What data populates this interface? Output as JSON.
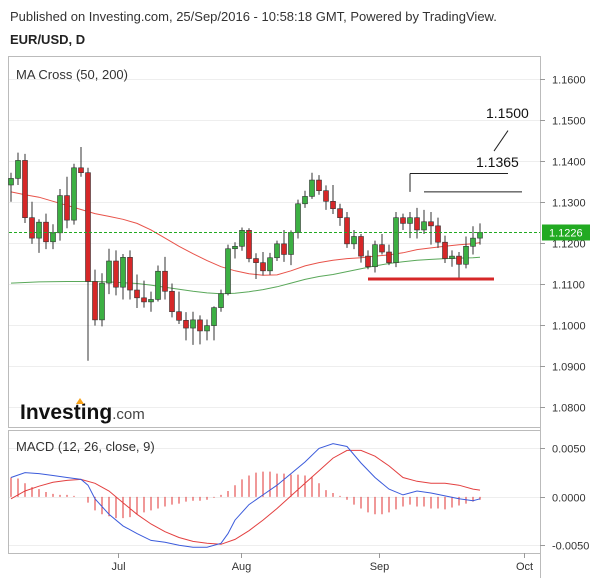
{
  "header": {
    "published": "Published on Investing.com, 25/Sep/2016 - 10:58:18 GMT, Powered by TradingView.",
    "symbol": "EUR/USD, D"
  },
  "watermark": {
    "brand": "Investing",
    "suffix": ".com"
  },
  "colors": {
    "up": "#3cb043",
    "down": "#d62728",
    "ma50": "#e8534a",
    "ma200": "#5aa85a",
    "macd": "#3b5bdb",
    "signal": "#e34040",
    "hist": "#e03030",
    "last": "#22aa22"
  },
  "chart_data": [
    {
      "type": "candlestick",
      "title": "MA Cross (50, 200)",
      "ylim": [
        1.075,
        1.1655
      ],
      "y_ticks": [
        "1.1600",
        "1.1500",
        "1.1400",
        "1.1300",
        "1.1200",
        "1.1100",
        "1.1000",
        "1.0900",
        "1.0800"
      ],
      "last_price": "1.1226",
      "x_ticks": [
        "Jul",
        "Aug",
        "Sep",
        "Oct"
      ],
      "annotations": [
        {
          "text": "1.1500",
          "kind": "label"
        },
        {
          "text": "1.1365",
          "kind": "label"
        },
        {
          "kind": "hline",
          "value": 1.1325,
          "from": 59,
          "to": 73
        },
        {
          "kind": "hline",
          "value": 1.137,
          "from": 57,
          "to": 71
        },
        {
          "kind": "support",
          "value": 1.1112,
          "from": 51,
          "to": 69
        }
      ],
      "candles": [
        [
          1.1342,
          1.1372,
          1.1301,
          1.1358
        ],
        [
          1.1358,
          1.1421,
          1.1342,
          1.1402
        ],
        [
          1.1402,
          1.1418,
          1.1249,
          1.1262
        ],
        [
          1.1262,
          1.1301,
          1.1198,
          1.1212
        ],
        [
          1.1212,
          1.1258,
          1.1176,
          1.1251
        ],
        [
          1.1251,
          1.1272,
          1.1185,
          1.1203
        ],
        [
          1.1203,
          1.1246,
          1.1185,
          1.1225
        ],
        [
          1.1225,
          1.1332,
          1.1206,
          1.1316
        ],
        [
          1.1316,
          1.1362,
          1.1236,
          1.1256
        ],
        [
          1.1256,
          1.1394,
          1.1245,
          1.1384
        ],
        [
          1.1384,
          1.1435,
          1.1362,
          1.1372
        ],
        [
          1.1372,
          1.1384,
          1.0912,
          1.1106
        ],
        [
          1.1106,
          1.1135,
          1.0998,
          1.1012
        ],
        [
          1.1012,
          1.1126,
          1.0996,
          1.1102
        ],
        [
          1.1102,
          1.1186,
          1.1075,
          1.1156
        ],
        [
          1.1156,
          1.1182,
          1.1072,
          1.1092
        ],
        [
          1.1092,
          1.1173,
          1.1062,
          1.1165
        ],
        [
          1.1165,
          1.1182,
          1.1062,
          1.1085
        ],
        [
          1.1085,
          1.1123,
          1.1041,
          1.1066
        ],
        [
          1.1066,
          1.1108,
          1.1042,
          1.1056
        ],
        [
          1.1056,
          1.1081,
          1.1032,
          1.1062
        ],
        [
          1.1062,
          1.1145,
          1.1057,
          1.1131
        ],
        [
          1.1131,
          1.1166,
          1.1062,
          1.1082
        ],
        [
          1.1082,
          1.1101,
          1.1018,
          1.1032
        ],
        [
          1.1032,
          1.1081,
          1.1002,
          1.1011
        ],
        [
          1.1011,
          1.1031,
          1.0962,
          1.0992
        ],
        [
          1.0992,
          1.1032,
          1.0951,
          1.1012
        ],
        [
          1.1012,
          1.1023,
          1.0952,
          1.0985
        ],
        [
          1.0985,
          1.1013,
          1.0962,
          1.0998
        ],
        [
          1.0998,
          1.1045,
          1.0962,
          1.1042
        ],
        [
          1.1042,
          1.1086,
          1.1032,
          1.1076
        ],
        [
          1.1076,
          1.1196,
          1.1072,
          1.1186
        ],
        [
          1.1186,
          1.1202,
          1.1162,
          1.1192
        ],
        [
          1.1192,
          1.1238,
          1.1181,
          1.1231
        ],
        [
          1.1231,
          1.1236,
          1.1153,
          1.1162
        ],
        [
          1.1162,
          1.1175,
          1.1112,
          1.1152
        ],
        [
          1.1152,
          1.1178,
          1.1121,
          1.1132
        ],
        [
          1.1132,
          1.1176,
          1.1122,
          1.1164
        ],
        [
          1.1164,
          1.1206,
          1.1156,
          1.1198
        ],
        [
          1.1198,
          1.1232,
          1.1154,
          1.1172
        ],
        [
          1.1172,
          1.1231,
          1.1146,
          1.1226
        ],
        [
          1.1226,
          1.1306,
          1.1211,
          1.1296
        ],
        [
          1.1296,
          1.1328,
          1.1286,
          1.1314
        ],
        [
          1.1314,
          1.1372,
          1.1308,
          1.1354
        ],
        [
          1.1354,
          1.1366,
          1.1318,
          1.1328
        ],
        [
          1.1328,
          1.1341,
          1.1281,
          1.1302
        ],
        [
          1.1302,
          1.1342,
          1.1271,
          1.1284
        ],
        [
          1.1284,
          1.1296,
          1.1242,
          1.1262
        ],
        [
          1.1262,
          1.1276,
          1.1188,
          1.1198
        ],
        [
          1.1198,
          1.1232,
          1.1185,
          1.1216
        ],
        [
          1.1216,
          1.1222,
          1.1152,
          1.1168
        ],
        [
          1.1168,
          1.1182,
          1.1136,
          1.1142
        ],
        [
          1.1142,
          1.1206,
          1.1128,
          1.1196
        ],
        [
          1.1196,
          1.1222,
          1.1172,
          1.1178
        ],
        [
          1.1178,
          1.1196,
          1.1146,
          1.1152
        ],
        [
          1.1152,
          1.1276,
          1.1141,
          1.1262
        ],
        [
          1.1262,
          1.1272,
          1.1232,
          1.1248
        ],
        [
          1.1248,
          1.1276,
          1.1212,
          1.1262
        ],
        [
          1.1262,
          1.1286,
          1.1211,
          1.1232
        ],
        [
          1.1232,
          1.1281,
          1.1222,
          1.1252
        ],
        [
          1.1252,
          1.1276,
          1.1196,
          1.1242
        ],
        [
          1.1242,
          1.1262,
          1.1188,
          1.1202
        ],
        [
          1.1202,
          1.1218,
          1.1151,
          1.1162
        ],
        [
          1.1162,
          1.1182,
          1.1142,
          1.1168
        ],
        [
          1.1168,
          1.1178,
          1.1112,
          1.1148
        ],
        [
          1.1148,
          1.1216,
          1.1138,
          1.1192
        ],
        [
          1.1192,
          1.1241,
          1.1172,
          1.1212
        ],
        [
          1.1212,
          1.1248,
          1.1196,
          1.1226
        ]
      ],
      "ma50": [
        [
          0,
          1.1325
        ],
        [
          2,
          1.1318
        ],
        [
          4,
          1.1312
        ],
        [
          6,
          1.1302
        ],
        [
          8,
          1.1292
        ],
        [
          10,
          1.1282
        ],
        [
          12,
          1.1272
        ],
        [
          14,
          1.1265
        ],
        [
          16,
          1.1258
        ],
        [
          18,
          1.1248
        ],
        [
          20,
          1.1232
        ],
        [
          22,
          1.1212
        ],
        [
          24,
          1.1192
        ],
        [
          26,
          1.1174
        ],
        [
          28,
          1.1157
        ],
        [
          30,
          1.1142
        ],
        [
          32,
          1.1132
        ],
        [
          34,
          1.1125
        ],
        [
          36,
          1.1121
        ],
        [
          38,
          1.1122
        ],
        [
          40,
          1.1132
        ],
        [
          42,
          1.1144
        ],
        [
          44,
          1.1152
        ],
        [
          46,
          1.1158
        ],
        [
          48,
          1.1162
        ],
        [
          50,
          1.1164
        ],
        [
          52,
          1.1168
        ],
        [
          54,
          1.1171
        ],
        [
          56,
          1.1176
        ],
        [
          58,
          1.1184
        ],
        [
          60,
          1.1188
        ],
        [
          62,
          1.1192
        ],
        [
          64,
          1.1196
        ],
        [
          66,
          1.1198
        ],
        [
          67,
          1.1201
        ]
      ],
      "ma200": [
        [
          0,
          1.1102
        ],
        [
          4,
          1.1105
        ],
        [
          8,
          1.1106
        ],
        [
          12,
          1.1106
        ],
        [
          14,
          1.1105
        ],
        [
          16,
          1.1103
        ],
        [
          18,
          1.1101
        ],
        [
          20,
          1.1097
        ],
        [
          22,
          1.1092
        ],
        [
          24,
          1.1087
        ],
        [
          26,
          1.1082
        ],
        [
          28,
          1.1078
        ],
        [
          30,
          1.1076
        ],
        [
          32,
          1.1077
        ],
        [
          34,
          1.1081
        ],
        [
          36,
          1.1086
        ],
        [
          38,
          1.1093
        ],
        [
          40,
          1.1102
        ],
        [
          42,
          1.1111
        ],
        [
          44,
          1.1118
        ],
        [
          46,
          1.1123
        ],
        [
          48,
          1.113
        ],
        [
          50,
          1.1137
        ],
        [
          52,
          1.1144
        ],
        [
          54,
          1.115
        ],
        [
          56,
          1.1154
        ],
        [
          58,
          1.1158
        ],
        [
          60,
          1.116
        ],
        [
          62,
          1.1162
        ],
        [
          64,
          1.1163
        ],
        [
          66,
          1.1164
        ],
        [
          67,
          1.1165
        ]
      ]
    },
    {
      "type": "macd",
      "title": "MACD (12, 26, close, 9)",
      "ylim": [
        -0.0058,
        0.0068
      ],
      "y_ticks": [
        "0.0050",
        "0.0000",
        "-0.0050"
      ],
      "macd": [
        [
          0,
          0.002
        ],
        [
          2,
          0.0025
        ],
        [
          4,
          0.0024
        ],
        [
          6,
          0.0022
        ],
        [
          8,
          0.002
        ],
        [
          10,
          0.0018
        ],
        [
          11,
          0.0012
        ],
        [
          12,
          -0.0002
        ],
        [
          14,
          -0.0018
        ],
        [
          16,
          -0.003
        ],
        [
          18,
          -0.0038
        ],
        [
          20,
          -0.0045
        ],
        [
          22,
          -0.0047
        ],
        [
          24,
          -0.005
        ],
        [
          26,
          -0.0052
        ],
        [
          28,
          -0.0052
        ],
        [
          30,
          -0.0048
        ],
        [
          31,
          -0.0038
        ],
        [
          32,
          -0.0024
        ],
        [
          34,
          -0.0008
        ],
        [
          36,
          0.0002
        ],
        [
          38,
          0.0012
        ],
        [
          40,
          0.0024
        ],
        [
          42,
          0.0036
        ],
        [
          44,
          0.005
        ],
        [
          46,
          0.0055
        ],
        [
          48,
          0.0052
        ],
        [
          50,
          0.0035
        ],
        [
          52,
          0.002
        ],
        [
          54,
          0.0008
        ],
        [
          56,
          0.0002
        ],
        [
          58,
          0.0006
        ],
        [
          60,
          0.0004
        ],
        [
          62,
          0.0001
        ],
        [
          64,
          -0.0002
        ],
        [
          66,
          -0.0004
        ],
        [
          67,
          -0.0002
        ]
      ],
      "signal": [
        [
          0,
          -0.0002
        ],
        [
          2,
          0.0006
        ],
        [
          4,
          0.0011
        ],
        [
          6,
          0.0015
        ],
        [
          8,
          0.0017
        ],
        [
          10,
          0.0018
        ],
        [
          12,
          0.0014
        ],
        [
          14,
          0.0006
        ],
        [
          16,
          -0.0006
        ],
        [
          18,
          -0.0018
        ],
        [
          20,
          -0.0028
        ],
        [
          22,
          -0.0036
        ],
        [
          24,
          -0.0042
        ],
        [
          26,
          -0.0046
        ],
        [
          28,
          -0.0048
        ],
        [
          30,
          -0.0049
        ],
        [
          32,
          -0.0044
        ],
        [
          34,
          -0.0035
        ],
        [
          36,
          -0.0024
        ],
        [
          38,
          -0.0012
        ],
        [
          40,
          0.0001
        ],
        [
          42,
          0.0014
        ],
        [
          44,
          0.0027
        ],
        [
          46,
          0.004
        ],
        [
          48,
          0.0048
        ],
        [
          50,
          0.0048
        ],
        [
          52,
          0.0042
        ],
        [
          54,
          0.0032
        ],
        [
          56,
          0.002
        ],
        [
          58,
          0.0016
        ],
        [
          60,
          0.0014
        ],
        [
          62,
          0.0014
        ],
        [
          64,
          0.0012
        ],
        [
          66,
          0.0008
        ],
        [
          67,
          0.0007
        ]
      ],
      "histogram": [
        0.002,
        0.0019,
        0.0014,
        0.001,
        0.0008,
        0.0005,
        0.0003,
        0.0002,
        0.0002,
        0.0001,
        0.0,
        -0.0006,
        -0.0014,
        -0.0018,
        -0.002,
        -0.0022,
        -0.0022,
        -0.0021,
        -0.0018,
        -0.0016,
        -0.0014,
        -0.0012,
        -0.001,
        -0.0008,
        -0.0007,
        -0.0005,
        -0.0004,
        -0.0004,
        -0.0003,
        -0.0001,
        0.0002,
        0.0006,
        0.0012,
        0.0018,
        0.0022,
        0.0025,
        0.0026,
        0.0026,
        0.0024,
        0.0024,
        0.0023,
        0.0023,
        0.0022,
        0.0021,
        0.0014,
        0.0007,
        0.0004,
        0.0001,
        -0.0003,
        -0.0008,
        -0.0012,
        -0.0016,
        -0.0018,
        -0.0018,
        -0.0016,
        -0.0013,
        -0.001,
        -0.0008,
        -0.001,
        -0.001,
        -0.0012,
        -0.0012,
        -0.0013,
        -0.0011,
        -0.0009,
        -0.0007,
        -0.0005,
        -0.0003
      ]
    }
  ]
}
